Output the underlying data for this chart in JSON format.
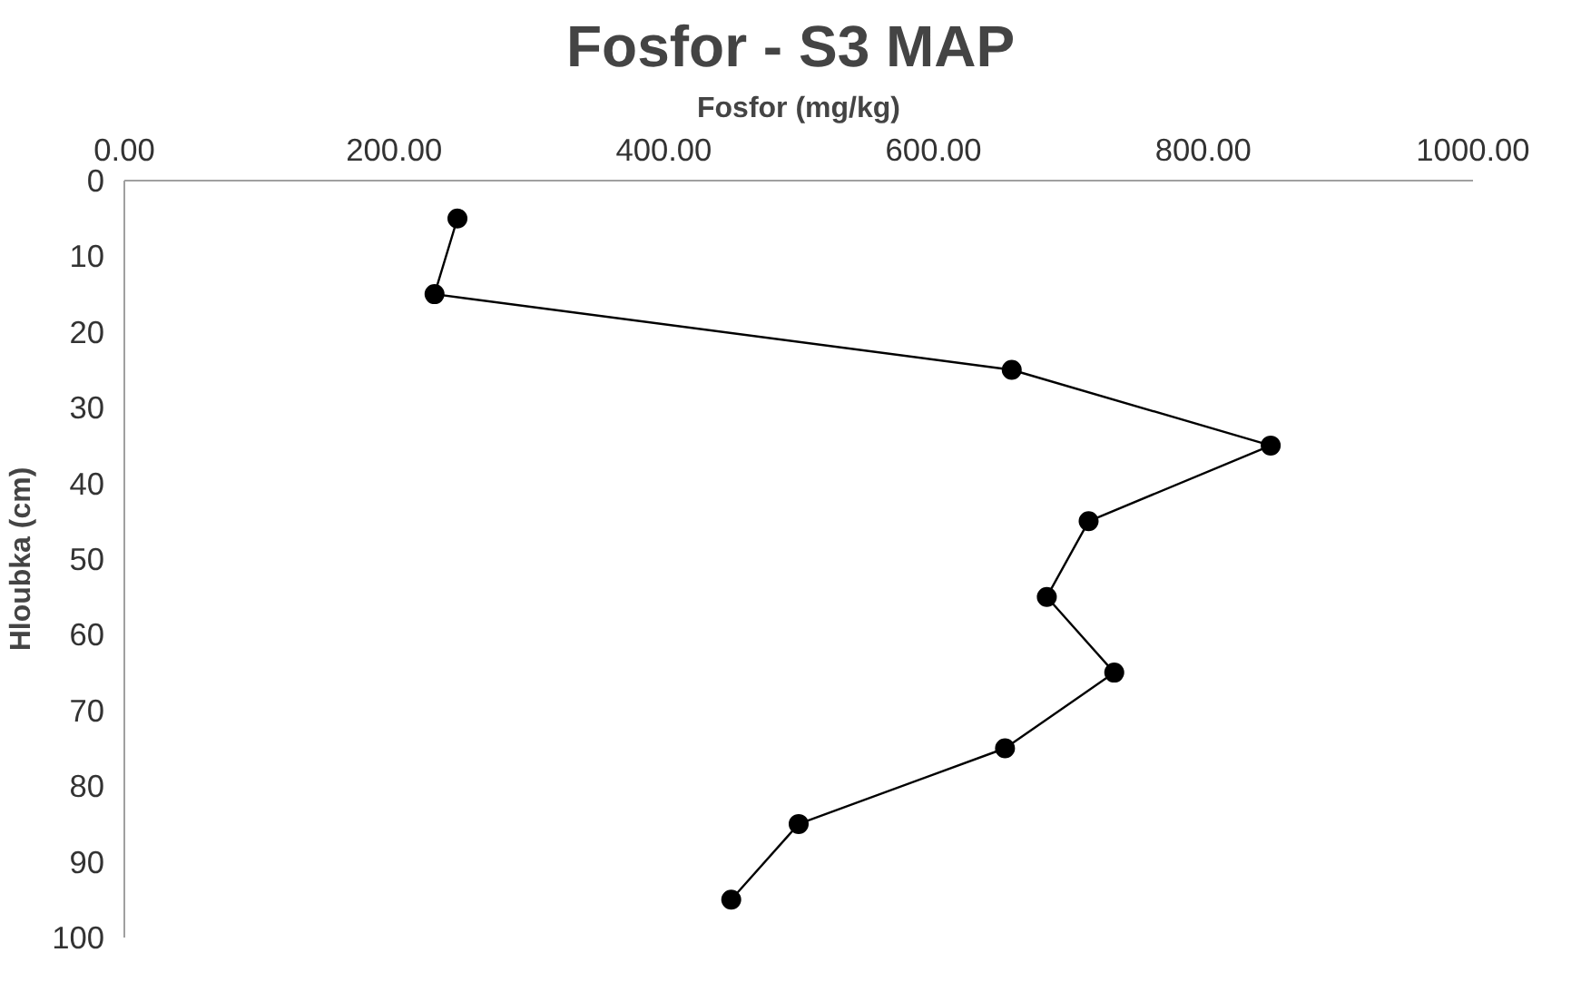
{
  "chart_data": {
    "type": "line",
    "title": "Fosfor  - S3 MAP",
    "xlabel": "Fosfor (mg/kg)",
    "ylabel": "Hloubka (cm)",
    "x": [
      247,
      230,
      658,
      850,
      715,
      684,
      734,
      653,
      500,
      450
    ],
    "series": [
      {
        "color": "#000000",
        "values": [
          5,
          15,
          25,
          35,
          45,
          55,
          65,
          75,
          85,
          95
        ]
      }
    ],
    "xlim": [
      0,
      1000
    ],
    "xticks": [
      {
        "value": 0,
        "label": "0.00"
      },
      {
        "value": 200,
        "label": "200.00"
      },
      {
        "value": 400,
        "label": "400.00"
      },
      {
        "value": 600,
        "label": "600.00"
      },
      {
        "value": 800,
        "label": "800.00"
      },
      {
        "value": 1000,
        "label": "1000.00"
      }
    ],
    "ylim": [
      100,
      0
    ],
    "yticks": [
      0,
      10,
      20,
      30,
      40,
      50,
      60,
      70,
      80,
      90,
      100
    ],
    "marker": "circle",
    "line_style": "solid",
    "grid": false
  }
}
